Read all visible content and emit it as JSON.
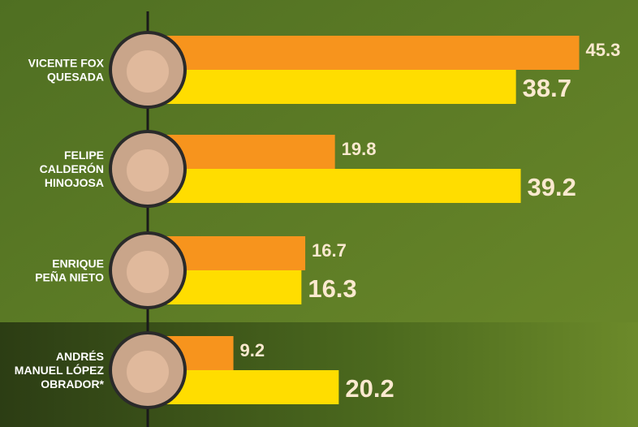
{
  "chart_data": {
    "type": "bar",
    "categories": [
      [
        "VICENTE FOX",
        "QUESADA"
      ],
      [
        "FELIPE",
        "CALDERÓN",
        "HINOJOSA"
      ],
      [
        "ENRIQUE",
        "PEÑA NIETO"
      ],
      [
        "ANDRÉS",
        "MANUEL LÓPEZ",
        "OBRADOR*"
      ]
    ],
    "series": [
      {
        "color": "#f7941d",
        "values": [
          45.3,
          19.8,
          16.7,
          9.2
        ]
      },
      {
        "color": "#ffdd00",
        "values": [
          38.7,
          39.2,
          16.3,
          20.2
        ]
      }
    ]
  }
}
